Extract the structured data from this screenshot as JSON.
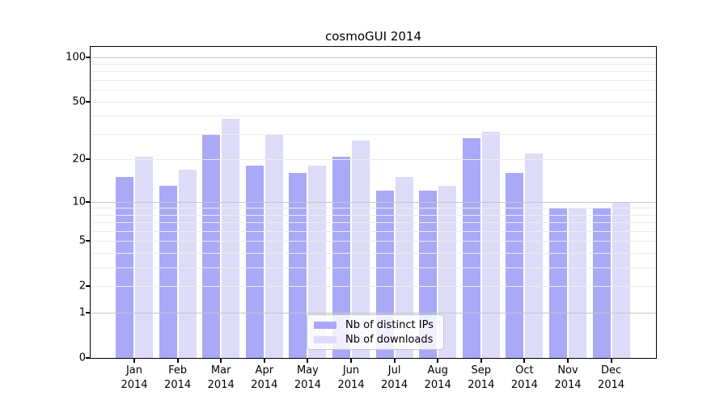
{
  "figure": {
    "title": "cosmoGUI 2014"
  },
  "chart_data": {
    "type": "bar",
    "title": "cosmoGUI 2014",
    "categories": [
      "Jan 2014",
      "Feb 2014",
      "Mar 2014",
      "Apr 2014",
      "May 2014",
      "Jun 2014",
      "Jul 2014",
      "Aug 2014",
      "Sep 2014",
      "Oct 2014",
      "Nov 2014",
      "Dec 2014"
    ],
    "x_tick_months": [
      "Jan",
      "Feb",
      "Mar",
      "Apr",
      "May",
      "Jun",
      "Jul",
      "Aug",
      "Sep",
      "Oct",
      "Nov",
      "Dec"
    ],
    "x_tick_year": "2014",
    "series": [
      {
        "name": "Nb of distinct IPs",
        "color": "#a9a9f8",
        "values": [
          15,
          13,
          30,
          18,
          16,
          21,
          12,
          12,
          28,
          16,
          9,
          9
        ]
      },
      {
        "name": "Nb of downloads",
        "color": "#dcdcf9",
        "values": [
          21,
          17,
          38,
          30,
          18,
          27,
          15,
          13,
          31,
          22,
          9,
          10
        ]
      }
    ],
    "y_axis": {
      "scale": "log10(value+1)",
      "tick_values": [
        0,
        1,
        2,
        5,
        10,
        20,
        50,
        100
      ],
      "major_gridlines": [
        1,
        10,
        100
      ],
      "minor_gridlines": [
        2,
        3,
        4,
        5,
        6,
        7,
        8,
        9,
        20,
        30,
        40,
        50,
        60,
        70,
        80,
        90
      ],
      "axis_max_value": 116
    },
    "legend": {
      "position": "lower center",
      "entries": [
        "Nb of distinct IPs",
        "Nb of downloads"
      ]
    },
    "grid": true,
    "colors": {
      "major_grid": "#c6c6c6",
      "minor_grid": "#ececec",
      "axis": "#000000",
      "background": "#ffffff",
      "legend_border": "#c8c8c8"
    }
  }
}
